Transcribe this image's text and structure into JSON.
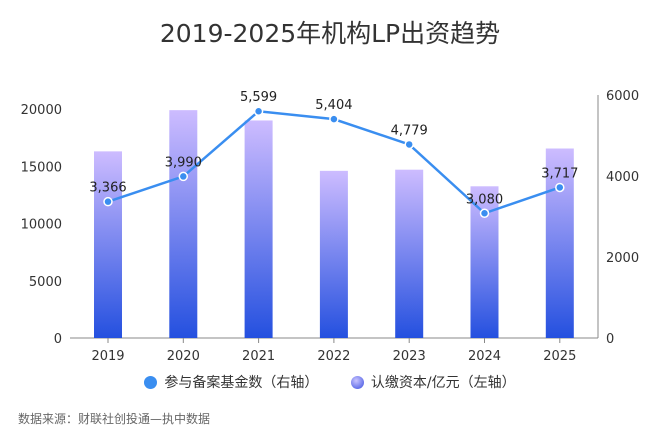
{
  "chart_data": {
    "type": "bar+line",
    "title": "2019-2025年机构LP出资趋势",
    "categories": [
      "2019",
      "2020",
      "2021",
      "2022",
      "2023",
      "2024",
      "2025"
    ],
    "series": [
      {
        "name": "认缴资本/亿元（左轴）",
        "type": "bar",
        "axis": "left",
        "values": [
          16300,
          19900,
          19000,
          14600,
          14700,
          13250,
          16550
        ],
        "color": "#3a52e0"
      },
      {
        "name": "参与备案基金数（右轴）",
        "type": "line",
        "axis": "right",
        "values": [
          3366,
          3990,
          5599,
          5404,
          4779,
          3080,
          3717
        ],
        "labels": [
          "3,366",
          "3,990",
          "5,599",
          "5,404",
          "4,779",
          "3,080",
          "3,717"
        ],
        "color": "#3a8ef0"
      }
    ],
    "left_axis": {
      "ylim": [
        0,
        20000
      ],
      "ticks": [
        "0",
        "5000",
        "10000",
        "15000",
        "20000"
      ]
    },
    "right_axis": {
      "ylim": [
        0,
        6000
      ],
      "ticks": [
        "0",
        "2000",
        "4000",
        "6000"
      ]
    },
    "legend_position": "bottom",
    "grid": false
  },
  "source": "数据来源：财联社创投通—执中数据"
}
